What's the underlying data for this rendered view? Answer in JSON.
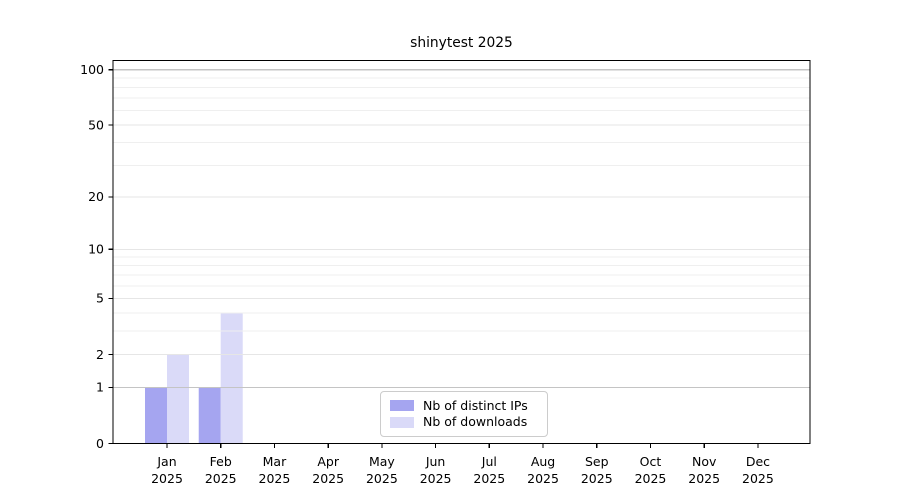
{
  "title": "shinytest 2025",
  "chart_data": {
    "type": "bar",
    "title": "shinytest 2025",
    "categories": [
      "Jan",
      "Feb",
      "Mar",
      "Apr",
      "May",
      "Jun",
      "Jul",
      "Aug",
      "Sep",
      "Oct",
      "Nov",
      "Dec"
    ],
    "category_sublabel": "2025",
    "series": [
      {
        "name": "Nb of distinct IPs",
        "color": "#a5a5f0",
        "values": [
          1,
          1,
          0,
          0,
          0,
          0,
          0,
          0,
          0,
          0,
          0,
          0
        ]
      },
      {
        "name": "Nb of downloads",
        "color": "#dadaf8",
        "values": [
          2,
          4,
          0,
          0,
          0,
          0,
          0,
          0,
          0,
          0,
          0,
          0
        ]
      }
    ],
    "y_ticks": [
      0,
      1,
      2,
      5,
      10,
      20,
      50,
      100
    ],
    "y_scale": "log1p",
    "ylim": [
      0,
      112
    ],
    "xlabel": "",
    "ylabel": "",
    "grid": true,
    "gridline_values_light": [
      2,
      3,
      4,
      5,
      6,
      7,
      8,
      9,
      10,
      20,
      30,
      40,
      50,
      60,
      70,
      80,
      90
    ],
    "gridline_values_emphasis": [
      1,
      100
    ],
    "legend_position": "bottom-center"
  },
  "colors": {
    "background": "#ffffff",
    "axis": "#000000",
    "grid_light": "#efefef",
    "grid_mid": "#e6e6e6",
    "grid_emphasis": "#c4c4c4",
    "text": "#000000",
    "legend_border": "#cccccc"
  }
}
